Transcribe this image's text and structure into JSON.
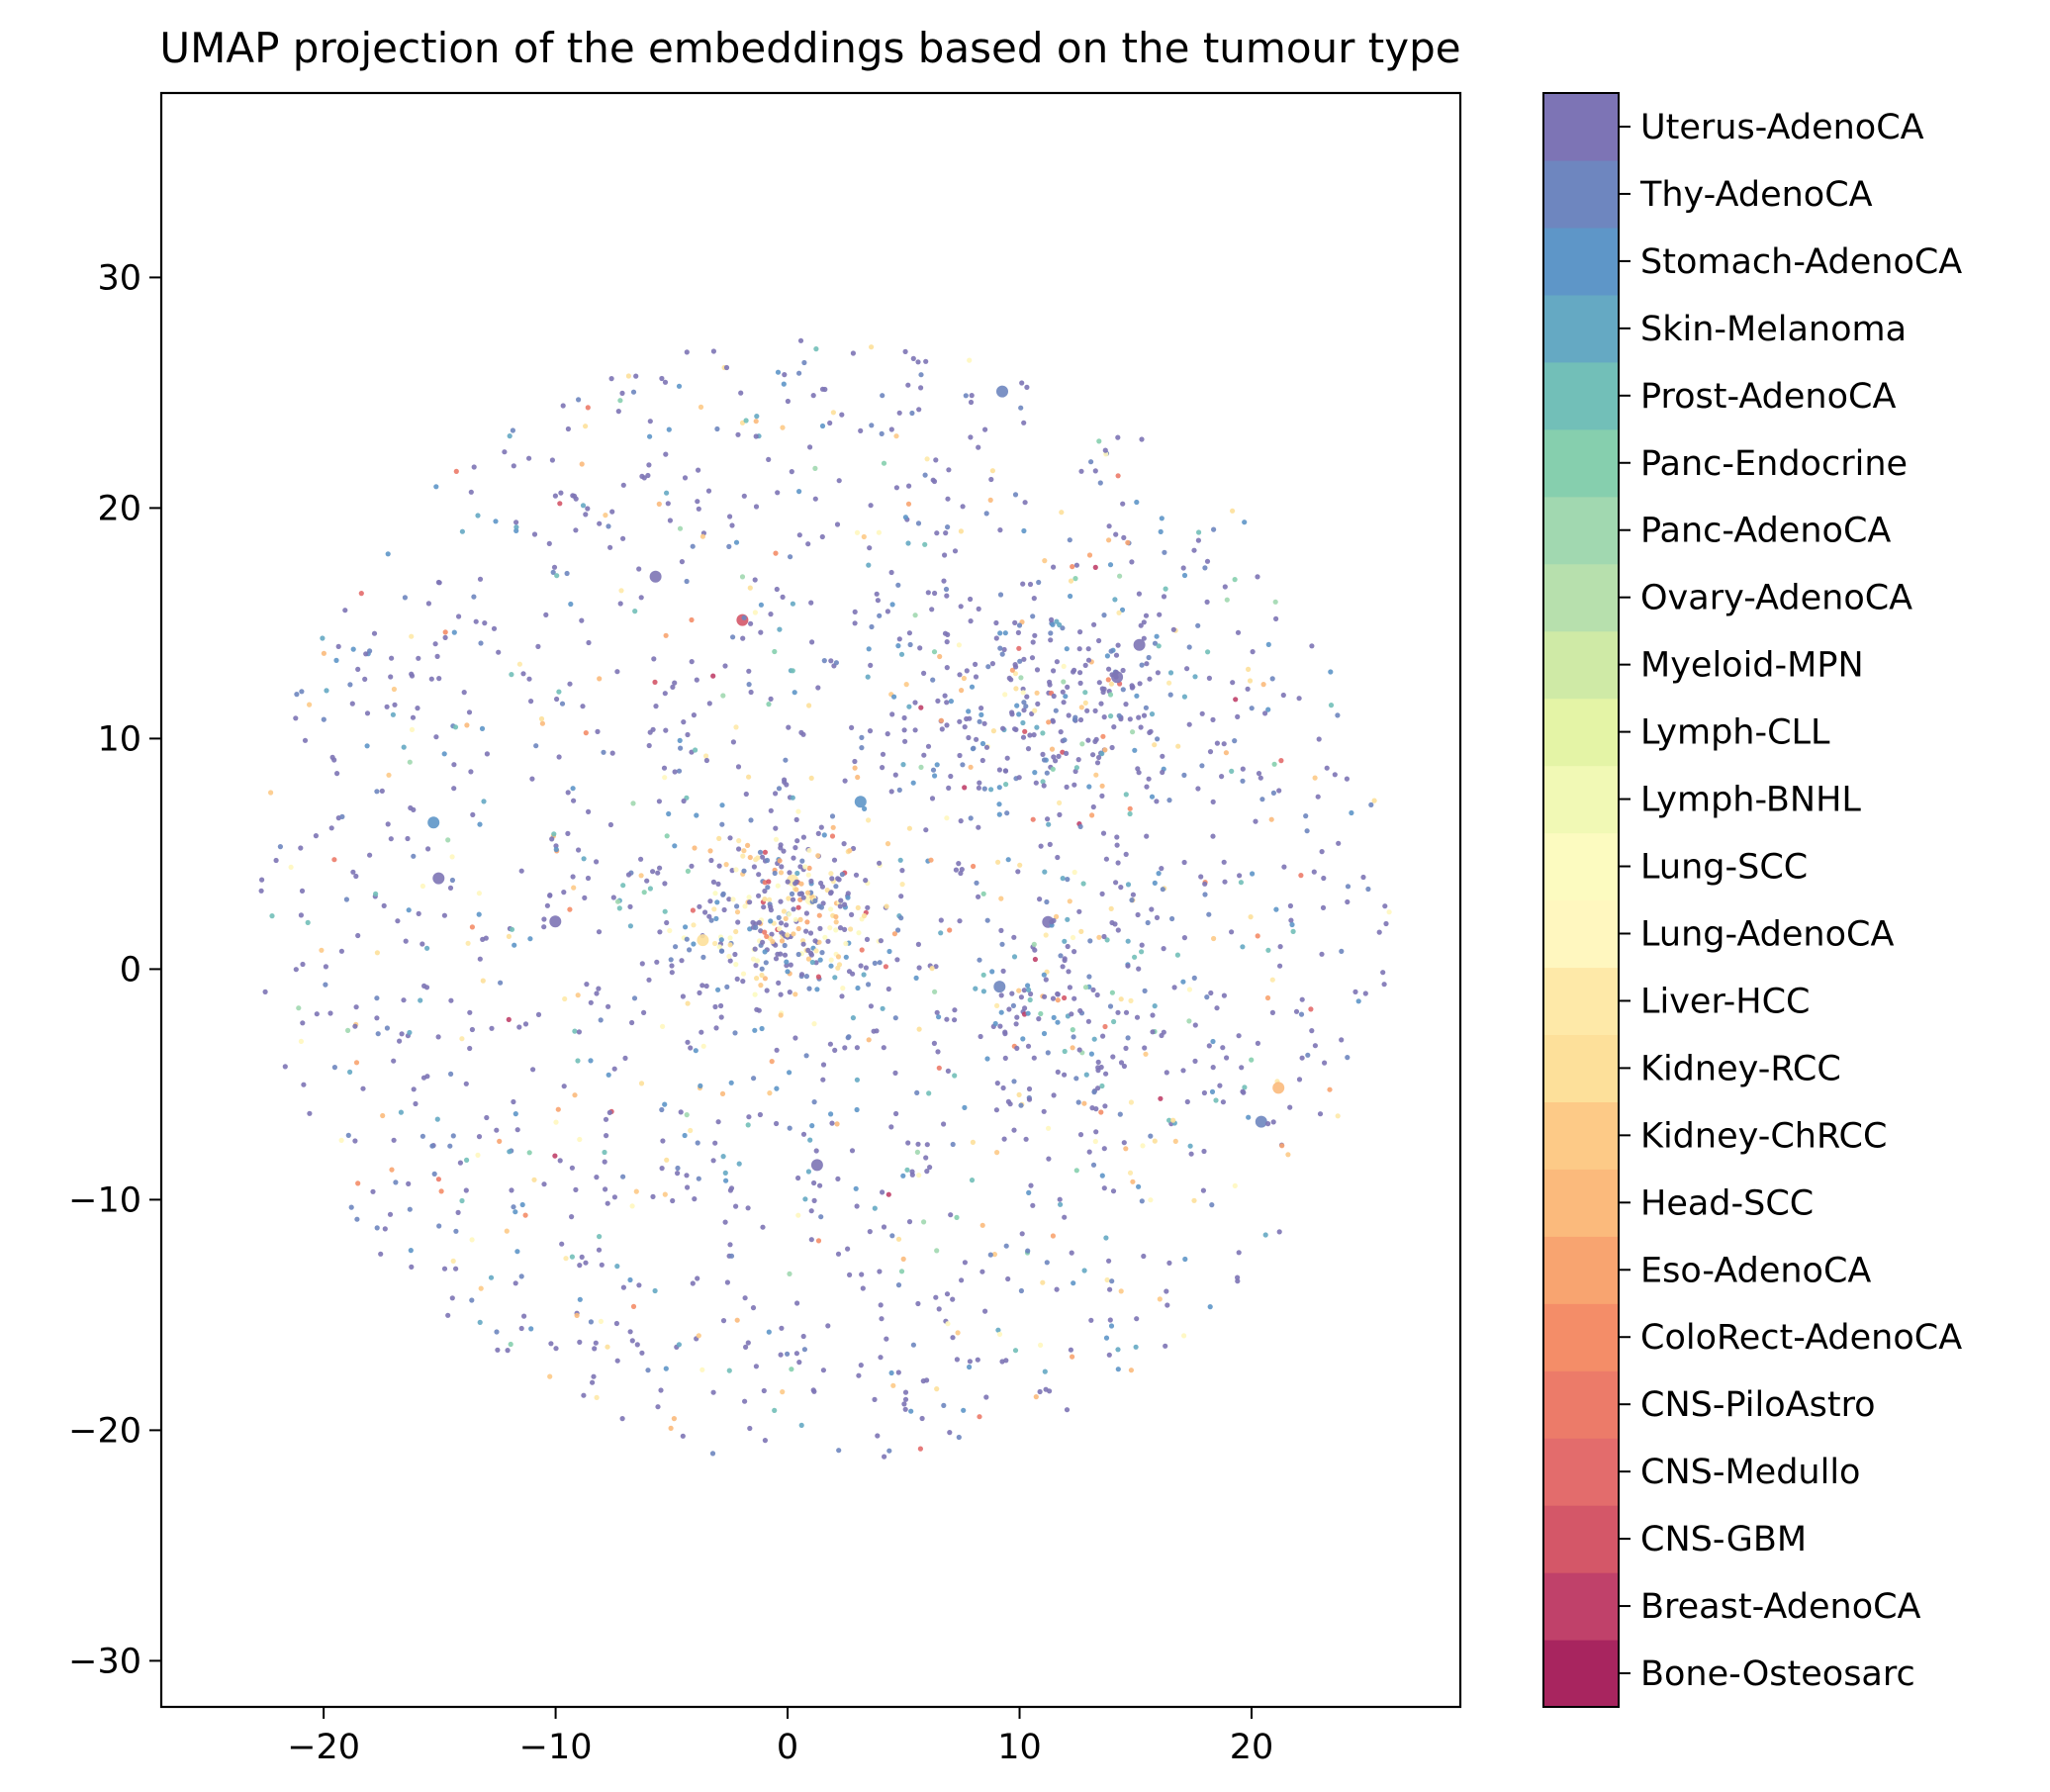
{
  "chart_data": {
    "type": "scatter",
    "title": "UMAP projection of the embeddings based on the tumour type",
    "xlabel": "",
    "ylabel": "",
    "xlim": [
      -27,
      29
    ],
    "ylim": [
      -32,
      38
    ],
    "x_ticks": [
      -20,
      -10,
      0,
      10,
      20
    ],
    "x_tick_labels": [
      "−20",
      "−10",
      "0",
      "10",
      "20"
    ],
    "y_ticks": [
      -30,
      -20,
      -10,
      0,
      10,
      20,
      30
    ],
    "y_tick_labels": [
      "−30",
      "−20",
      "−10",
      "0",
      "10",
      "20",
      "30"
    ],
    "grid": false,
    "colorbar": {
      "position": "right",
      "categories": [
        "Bone-Osteosarc",
        "Breast-AdenoCA",
        "CNS-GBM",
        "CNS-Medullo",
        "CNS-PiloAstro",
        "ColoRect-AdenoCA",
        "Eso-AdenoCA",
        "Head-SCC",
        "Kidney-ChRCC",
        "Kidney-RCC",
        "Liver-HCC",
        "Lung-AdenoCA",
        "Lung-SCC",
        "Lymph-BNHL",
        "Lymph-CLL",
        "Myeloid-MPN",
        "Ovary-AdenoCA",
        "Panc-AdenoCA",
        "Panc-Endocrine",
        "Prost-AdenoCA",
        "Skin-Melanoma",
        "Stomach-AdenoCA",
        "Thy-AdenoCA",
        "Uterus-AdenoCA"
      ],
      "colors": [
        "#a8255f",
        "#c0416a",
        "#d45768",
        "#e36c6c",
        "#ec7b69",
        "#f48d68",
        "#f8a470",
        "#fbba7c",
        "#fdca87",
        "#fde09a",
        "#fee9a8",
        "#fff7bf",
        "#fcfbc0",
        "#f1f9b5",
        "#e4f4a6",
        "#cfeaa6",
        "#b7e0ad",
        "#a1d8b0",
        "#86cfae",
        "#72bfb8",
        "#65a9c3",
        "#5e96c8",
        "#6e86bf",
        "#7d74b5"
      ]
    },
    "point_count": 2300,
    "description_of_distribution": "Roughly circular cloud of ~2300 points spanning x from -24 to 27 and y from -21 to 27, with a dense core near (0, 2) and a secondary dense region near (12, 12); mostly purple/blue points with yellow/orange points concentrated near the core.",
    "seed": 12345
  }
}
